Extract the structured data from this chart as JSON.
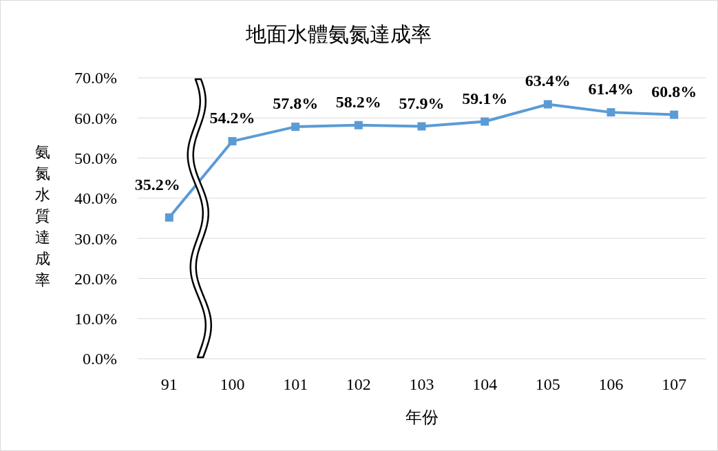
{
  "chart_data": {
    "type": "line",
    "title": "地面水體氨氮達成率",
    "xlabel": "年份",
    "ylabel": "氨氮水質達成率",
    "categories": [
      "91",
      "100",
      "101",
      "102",
      "103",
      "104",
      "105",
      "106",
      "107"
    ],
    "series": [
      {
        "color": "#5b9bd5",
        "values": [
          35.2,
          54.2,
          57.8,
          58.2,
          57.9,
          59.1,
          63.4,
          61.4,
          60.8
        ],
        "value_labels": [
          "35.2%",
          "54.2%",
          "57.8%",
          "58.2%",
          "57.9%",
          "59.1%",
          "63.4%",
          "61.4%",
          "60.8%"
        ]
      }
    ],
    "ylim": [
      0,
      70
    ],
    "yticks": [
      {
        "value": 0,
        "label": "0.0%"
      },
      {
        "value": 10,
        "label": "10.0%"
      },
      {
        "value": 20,
        "label": "20.0%"
      },
      {
        "value": 30,
        "label": "30.0%"
      },
      {
        "value": 40,
        "label": "40.0%"
      },
      {
        "value": 50,
        "label": "50.0%"
      },
      {
        "value": 60,
        "label": "60.0%"
      },
      {
        "value": 70,
        "label": "70.0%"
      }
    ],
    "grid": "y",
    "marker": "square",
    "line_style": "solid"
  }
}
